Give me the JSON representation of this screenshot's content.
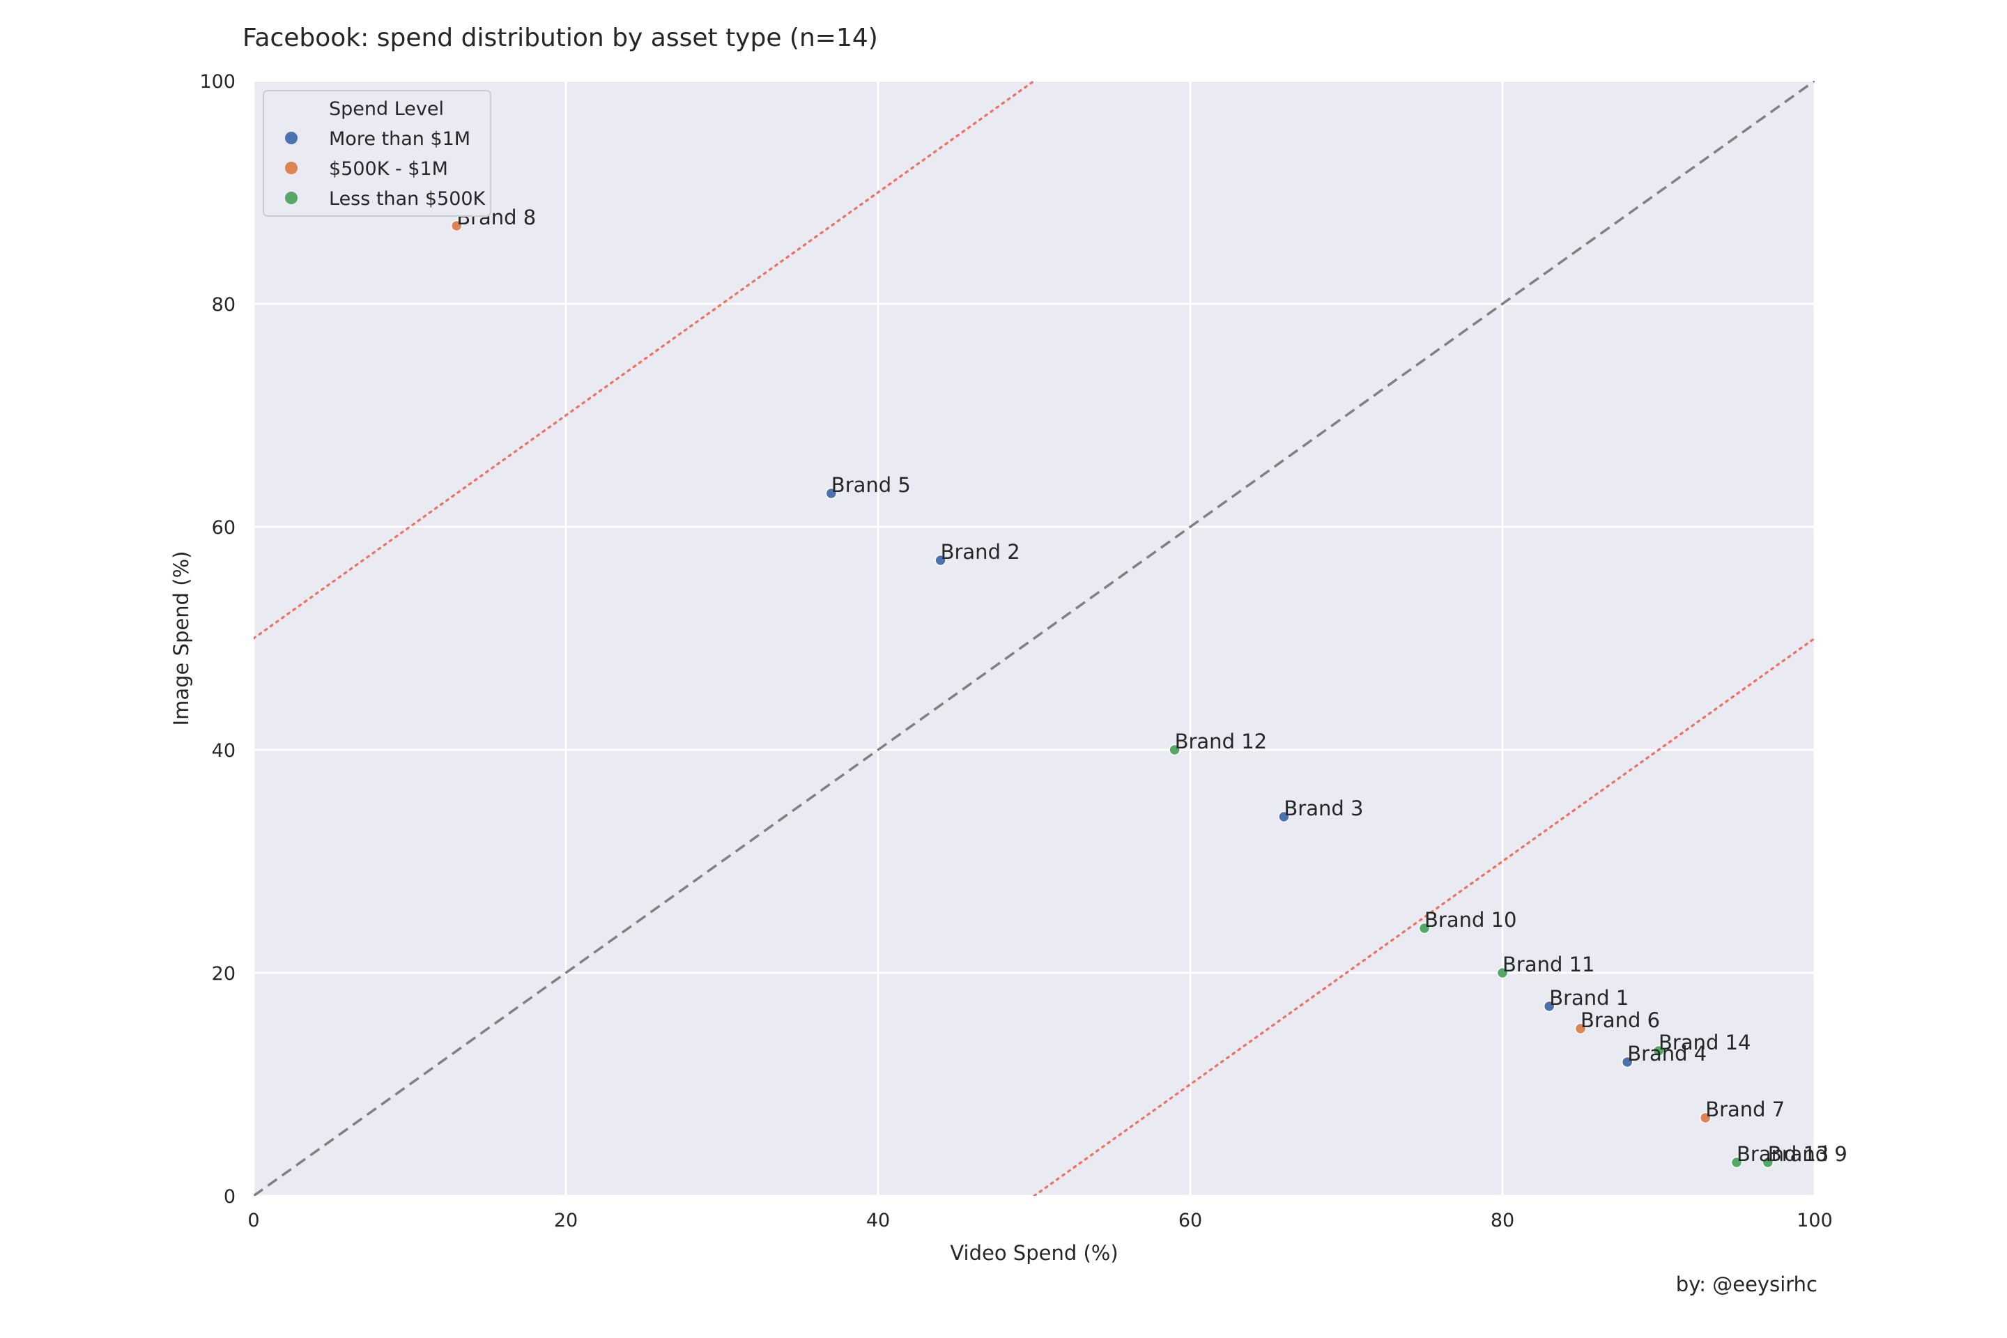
{
  "chart_data": {
    "type": "scatter",
    "title": "Facebook: spend distribution by asset type (n=14)",
    "xlabel": "Video Spend (%)",
    "ylabel": "Image Spend (%)",
    "xlim": [
      0,
      100
    ],
    "ylim": [
      0,
      100
    ],
    "xticks": [
      0,
      20,
      40,
      60,
      80,
      100
    ],
    "yticks": [
      0,
      20,
      40,
      60,
      80,
      100
    ],
    "grid": true,
    "legend": {
      "title": "Spend Level",
      "position": "top-left"
    },
    "series": [
      {
        "name": "More than $1M",
        "color": "#4c72b0",
        "points": [
          {
            "label": "Brand 5",
            "x": 37,
            "y": 63
          },
          {
            "label": "Brand 2",
            "x": 44,
            "y": 57
          },
          {
            "label": "Brand 3",
            "x": 66,
            "y": 34
          },
          {
            "label": "Brand 1",
            "x": 83,
            "y": 17
          },
          {
            "label": "Brand 4",
            "x": 88,
            "y": 12
          }
        ]
      },
      {
        "name": "$500K - $1M",
        "color": "#dd8452",
        "points": [
          {
            "label": "Brand 8",
            "x": 13,
            "y": 87
          },
          {
            "label": "Brand 6",
            "x": 85,
            "y": 15
          },
          {
            "label": "Brand 7",
            "x": 93,
            "y": 7
          }
        ]
      },
      {
        "name": "Less than $500K",
        "color": "#55a868",
        "points": [
          {
            "label": "Brand 12",
            "x": 59,
            "y": 40
          },
          {
            "label": "Brand 10",
            "x": 75,
            "y": 24
          },
          {
            "label": "Brand 11",
            "x": 80,
            "y": 20
          },
          {
            "label": "Brand 14",
            "x": 90,
            "y": 13
          },
          {
            "label": "Brand 13",
            "x": 95,
            "y": 3
          },
          {
            "label": "Brand 9",
            "x": 97,
            "y": 3
          }
        ]
      }
    ],
    "reference_lines": [
      {
        "style": "dashed",
        "color": "#808080",
        "from": [
          0,
          0
        ],
        "to": [
          100,
          100
        ]
      },
      {
        "style": "dotted",
        "color": "#f07060",
        "from": [
          0,
          50
        ],
        "to": [
          50,
          100
        ]
      },
      {
        "style": "dotted",
        "color": "#f07060",
        "from": [
          50,
          0
        ],
        "to": [
          100,
          50
        ]
      }
    ],
    "credit": "by: @eeysirhc"
  }
}
